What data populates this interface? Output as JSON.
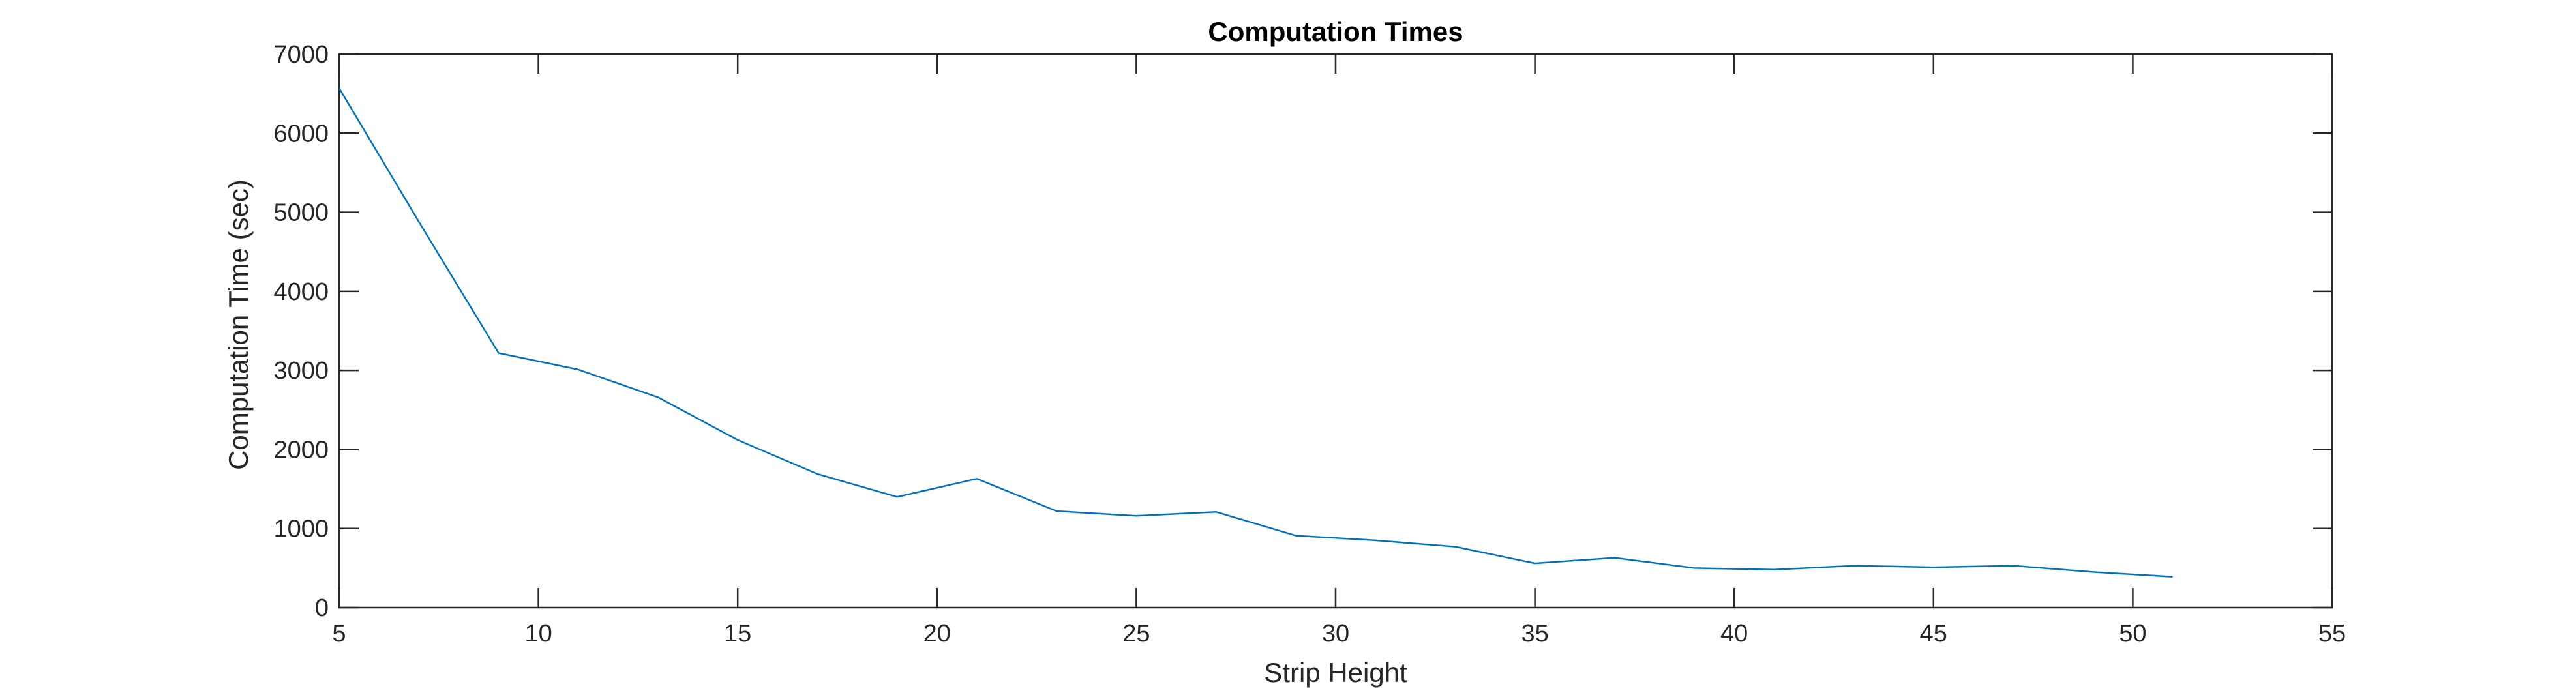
{
  "chart_data": {
    "type": "line",
    "title": "Computation Times",
    "xlabel": "Strip Height",
    "ylabel": "Computation Time (sec)",
    "xlim": [
      5,
      55
    ],
    "ylim": [
      0,
      7000
    ],
    "xticks": [
      "5",
      "10",
      "15",
      "20",
      "25",
      "30",
      "35",
      "40",
      "45",
      "50",
      "55"
    ],
    "yticks": [
      "0",
      "1000",
      "2000",
      "3000",
      "4000",
      "5000",
      "6000",
      "7000"
    ],
    "grid": false,
    "series": [
      {
        "color": "#0072bd",
        "x": [
          5,
          7,
          9,
          11,
          13,
          15,
          17,
          19,
          21,
          23,
          25,
          27,
          29,
          31,
          33,
          35,
          37,
          39,
          41,
          43,
          45,
          47,
          49,
          51
        ],
        "y": [
          6570,
          4880,
          3220,
          3010,
          2660,
          2120,
          1690,
          1400,
          1630,
          1220,
          1160,
          1210,
          910,
          850,
          770,
          560,
          630,
          500,
          480,
          530,
          510,
          530,
          450,
          390
        ]
      }
    ]
  }
}
